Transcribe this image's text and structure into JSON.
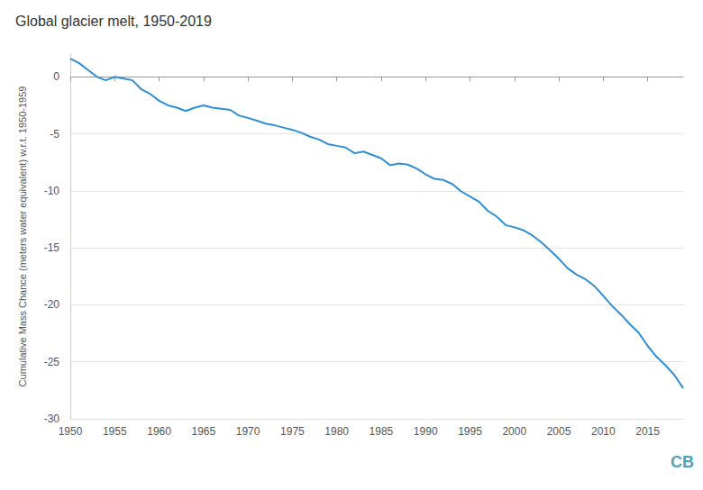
{
  "chart_data": {
    "type": "line",
    "title": "Global glacier melt, 1950-2019",
    "y_label": "Cumulative Mass Chance (meters water equivalent) w.r.t. 1950-1959",
    "logo": "CB",
    "x": [
      1950,
      1951,
      1952,
      1953,
      1954,
      1955,
      1956,
      1957,
      1958,
      1959,
      1960,
      1961,
      1962,
      1963,
      1964,
      1965,
      1966,
      1967,
      1968,
      1969,
      1970,
      1971,
      1972,
      1973,
      1974,
      1975,
      1976,
      1977,
      1978,
      1979,
      1980,
      1981,
      1982,
      1983,
      1984,
      1985,
      1986,
      1987,
      1988,
      1989,
      1990,
      1991,
      1992,
      1993,
      1994,
      1995,
      1996,
      1997,
      1998,
      1999,
      2000,
      2001,
      2002,
      2003,
      2004,
      2005,
      2006,
      2007,
      2008,
      2009,
      2010,
      2011,
      2012,
      2013,
      2014,
      2015,
      2016,
      2017,
      2018,
      2019
    ],
    "values": [
      1.6,
      1.2,
      0.6,
      0.0,
      -0.3,
      0.0,
      -0.15,
      -0.3,
      -1.1,
      -1.5,
      -2.1,
      -2.5,
      -2.7,
      -3.0,
      -2.7,
      -2.5,
      -2.7,
      -2.8,
      -2.9,
      -3.4,
      -3.6,
      -3.85,
      -4.1,
      -4.25,
      -4.45,
      -4.65,
      -4.9,
      -5.25,
      -5.5,
      -5.9,
      -6.05,
      -6.2,
      -6.7,
      -6.55,
      -6.85,
      -7.15,
      -7.75,
      -7.6,
      -7.7,
      -8.05,
      -8.55,
      -8.95,
      -9.05,
      -9.4,
      -10.05,
      -10.5,
      -10.95,
      -11.75,
      -12.25,
      -13.0,
      -13.2,
      -13.45,
      -13.9,
      -14.5,
      -15.2,
      -15.95,
      -16.8,
      -17.35,
      -17.75,
      -18.35,
      -19.2,
      -20.1,
      -20.85,
      -21.7,
      -22.45,
      -23.6,
      -24.55,
      -25.3,
      -26.15,
      -27.3
    ],
    "color": "#2f8fd6",
    "xlim": [
      1950,
      2019
    ],
    "xticks": [
      1950,
      1955,
      1960,
      1965,
      1970,
      1975,
      1980,
      1985,
      1990,
      1995,
      2000,
      2005,
      2010,
      2015
    ],
    "ylim": [
      -30,
      2
    ],
    "yticks": [
      -30,
      -25,
      -20,
      -15,
      -10,
      -5,
      0
    ],
    "grid": true
  }
}
